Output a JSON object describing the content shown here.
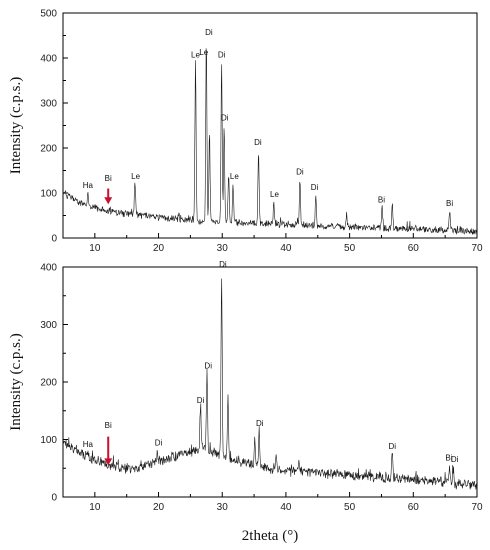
{
  "chart_data": [
    {
      "type": "line",
      "xlabel": "",
      "ylabel": "Intensity (c.p.s.)",
      "xlim": [
        5,
        70
      ],
      "ylim": [
        0,
        500
      ],
      "xticks": [
        "10",
        "20",
        "30",
        "40",
        "50",
        "60",
        "70"
      ],
      "yticks": [
        "0",
        "100",
        "200",
        "300",
        "400",
        "500"
      ],
      "baseline": [
        [
          5,
          100
        ],
        [
          8,
          75
        ],
        [
          12,
          60
        ],
        [
          16,
          52
        ],
        [
          20,
          45
        ],
        [
          25,
          40
        ],
        [
          30,
          35
        ],
        [
          40,
          30
        ],
        [
          50,
          24
        ],
        [
          60,
          20
        ],
        [
          70,
          15
        ]
      ],
      "peaks": [
        [
          8.9,
          105
        ],
        [
          16.3,
          125
        ],
        [
          25.8,
          390
        ],
        [
          27.5,
          440
        ],
        [
          28.0,
          240
        ],
        [
          29.9,
          390
        ],
        [
          30.3,
          250
        ],
        [
          31.0,
          145
        ],
        [
          31.7,
          120
        ],
        [
          35.7,
          195
        ],
        [
          38.1,
          80
        ],
        [
          42.2,
          130
        ],
        [
          44.7,
          95
        ],
        [
          49.5,
          52
        ],
        [
          55.1,
          70
        ],
        [
          56.7,
          80
        ],
        [
          65.7,
          62
        ]
      ],
      "annotations": [
        {
          "label": "Ha",
          "x": 8.9,
          "y": 105
        },
        {
          "label": "Bi",
          "x": 12.1,
          "y": 120
        },
        {
          "label": "Le",
          "x": 16.4,
          "y": 125
        },
        {
          "label": "Le",
          "x": 25.8,
          "y": 395
        },
        {
          "label": "Le",
          "x": 27.1,
          "y": 400
        },
        {
          "label": "Di",
          "x": 27.9,
          "y": 445
        },
        {
          "label": "Di",
          "x": 29.9,
          "y": 395
        },
        {
          "label": "Di",
          "x": 30.4,
          "y": 255
        },
        {
          "label": "Le",
          "x": 31.9,
          "y": 125
        },
        {
          "label": "Di",
          "x": 35.6,
          "y": 200
        },
        {
          "label": "Le",
          "x": 38.2,
          "y": 85
        },
        {
          "label": "Di",
          "x": 42.2,
          "y": 135
        },
        {
          "label": "Di",
          "x": 44.5,
          "y": 100
        },
        {
          "label": "Bi",
          "x": 55.0,
          "y": 72
        },
        {
          "label": "Bi",
          "x": 65.7,
          "y": 65
        }
      ],
      "arrow": {
        "x": 12.1,
        "y_top": 110,
        "y_bottom": 75
      }
    },
    {
      "type": "line",
      "xlabel": "2theta (°)",
      "ylabel": "Intensity (c.p.s.)",
      "xlim": [
        5,
        70
      ],
      "ylim": [
        0,
        400
      ],
      "xticks": [
        "10",
        "20",
        "30",
        "40",
        "50",
        "60",
        "70"
      ],
      "yticks": [
        "0",
        "100",
        "200",
        "300",
        "400"
      ],
      "baseline": [
        [
          5,
          95
        ],
        [
          8,
          75
        ],
        [
          12,
          55
        ],
        [
          16,
          48
        ],
        [
          20,
          62
        ],
        [
          24,
          75
        ],
        [
          27,
          85
        ],
        [
          30,
          70
        ],
        [
          35,
          55
        ],
        [
          40,
          45
        ],
        [
          50,
          38
        ],
        [
          60,
          30
        ],
        [
          70,
          20
        ]
      ],
      "peaks": [
        [
          8.9,
          80
        ],
        [
          19.8,
          82
        ],
        [
          26.6,
          155
        ],
        [
          27.6,
          215
        ],
        [
          29.9,
          395
        ],
        [
          30.9,
          175
        ],
        [
          35.1,
          100
        ],
        [
          35.8,
          115
        ],
        [
          38.5,
          70
        ],
        [
          42.0,
          60
        ],
        [
          56.7,
          75
        ],
        [
          65.7,
          55
        ],
        [
          66.3,
          50
        ]
      ],
      "annotations": [
        {
          "label": "Ha",
          "x": 8.9,
          "y": 82
        },
        {
          "label": "Bi",
          "x": 12.1,
          "y": 115
        },
        {
          "label": "Di",
          "x": 20.0,
          "y": 84
        },
        {
          "label": "Di",
          "x": 26.6,
          "y": 158
        },
        {
          "label": "Di",
          "x": 27.8,
          "y": 218
        },
        {
          "label": "Di",
          "x": 30.1,
          "y": 395
        },
        {
          "label": "Di",
          "x": 35.9,
          "y": 118
        },
        {
          "label": "Di",
          "x": 56.7,
          "y": 78
        },
        {
          "label": "Bi",
          "x": 65.6,
          "y": 58
        },
        {
          "label": "Di",
          "x": 66.5,
          "y": 56
        }
      ],
      "arrow": {
        "x": 12.1,
        "y_top": 105,
        "y_bottom": 55
      }
    }
  ]
}
